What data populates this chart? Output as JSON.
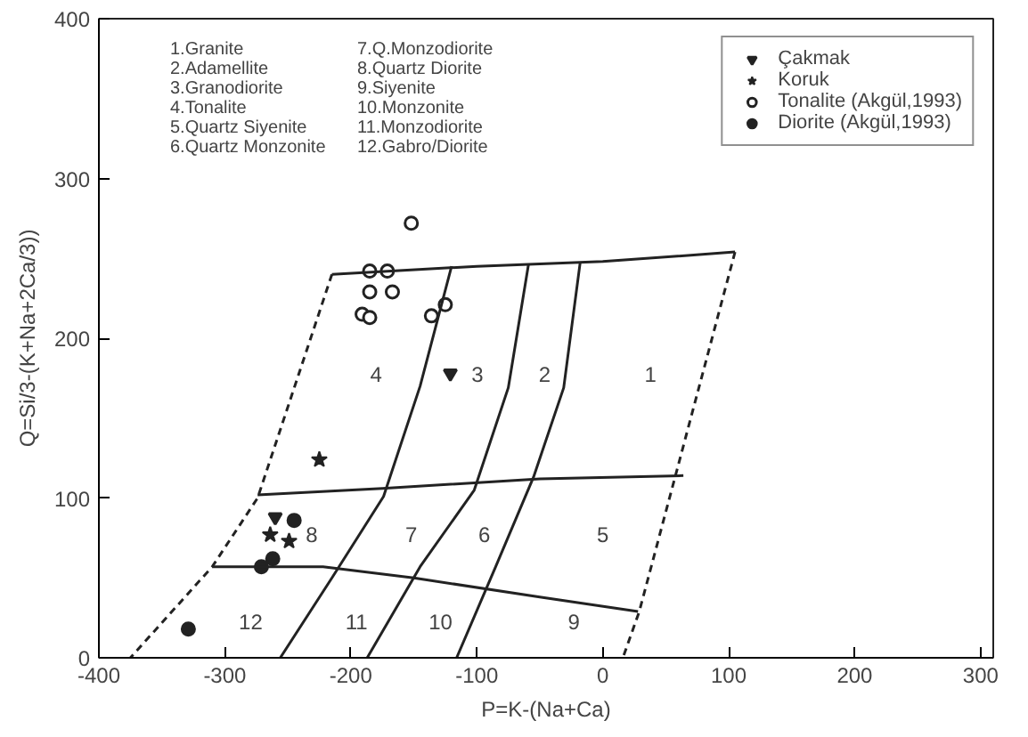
{
  "chart_data": {
    "type": "scatter",
    "xlabel": "P=K-(Na+Ca)",
    "ylabel": "Q=Si/3-(K+Na+2Ca/3))",
    "xlim": [
      -400,
      310
    ],
    "ylim": [
      0,
      400
    ],
    "xticks": [
      -400,
      -300,
      -200,
      -100,
      0,
      100,
      200,
      300
    ],
    "yticks": [
      0,
      100,
      200,
      300,
      400
    ],
    "grid": false,
    "legend": "top right",
    "series": [
      {
        "name": "Çakmak",
        "type": "scatter",
        "marker": "triangle",
        "color": "#222222",
        "x": [
          -121,
          -260
        ],
        "values": [
          178,
          88
        ]
      },
      {
        "name": "Koruk",
        "type": "scatter",
        "marker": "star",
        "color": "#222222",
        "x": [
          -225,
          -264,
          -249
        ],
        "values": [
          124,
          77,
          73
        ]
      },
      {
        "name": "Tonalite (Akgül,1993)",
        "type": "scatter",
        "marker": "circle",
        "color": "#ffffff",
        "x": [
          -152,
          -185,
          -171,
          -185,
          -167,
          -191,
          -185,
          -136,
          -125
        ],
        "values": [
          272,
          242,
          242,
          229,
          229,
          215,
          213,
          214,
          221
        ]
      },
      {
        "name": "Diorite (Akgül,1993)",
        "type": "scatter",
        "marker": "circle",
        "color": "#222222",
        "x": [
          -245,
          -262,
          -271,
          -329
        ],
        "values": [
          86,
          62,
          57,
          18
        ]
      },
      {
        "type": "line",
        "color": "#222222",
        "line_style": "solid",
        "x": [
          -215,
          -100,
          0,
          105
        ],
        "values": [
          240,
          245,
          248,
          254
        ]
      },
      {
        "type": "line",
        "color": "#222222",
        "line_style": "dashed",
        "x": [
          105,
          29,
          16
        ],
        "values": [
          254,
          29,
          0
        ]
      },
      {
        "type": "line",
        "color": "#222222",
        "line_style": "dashed",
        "x": [
          -215,
          -274,
          -310,
          -375
        ],
        "values": [
          240,
          100,
          57,
          0
        ]
      },
      {
        "type": "line",
        "color": "#222222",
        "line_style": "solid",
        "x": [
          -274,
          -175,
          -50,
          64
        ],
        "values": [
          102,
          106,
          112,
          114
        ]
      },
      {
        "type": "line",
        "color": "#222222",
        "line_style": "solid",
        "x": [
          -310,
          -222,
          -150,
          -50,
          28
        ],
        "values": [
          57,
          57,
          50,
          38,
          29
        ]
      },
      {
        "type": "line",
        "color": "#222222",
        "line_style": "solid",
        "x": [
          -256,
          -215,
          -174,
          -145,
          -120
        ],
        "values": [
          0,
          50,
          101,
          170,
          245
        ]
      },
      {
        "type": "line",
        "color": "#222222",
        "line_style": "solid",
        "x": [
          -187,
          -145,
          -102,
          -75,
          -59
        ],
        "values": [
          0,
          57,
          105,
          169,
          246
        ]
      },
      {
        "type": "line",
        "color": "#222222",
        "line_style": "solid",
        "x": [
          -116,
          -85,
          -55,
          -31,
          -18
        ],
        "values": [
          0,
          57,
          113,
          169,
          247
        ]
      }
    ],
    "annotations": [
      "1.Granite",
      "2.Adamellite",
      "3.Granodiorite",
      "4.Tonalite",
      "5.Quartz Siyenite",
      "6.Quartz Monzonite",
      "7.Q.Monzodiorite",
      "8.Quartz Diorite",
      "9.Siyenite",
      "10.Monzonite",
      "11.Monzodiorite",
      "12.Gabro/Diorite",
      "1",
      "2",
      "3",
      "4",
      "5",
      "6",
      "7",
      "8",
      "9",
      "10",
      "11",
      "12"
    ]
  }
}
